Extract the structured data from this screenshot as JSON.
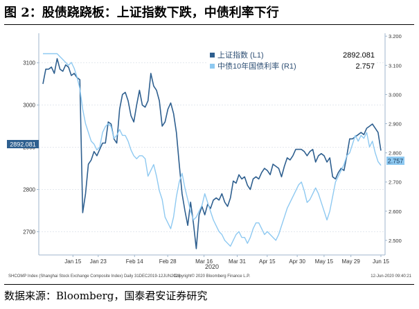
{
  "figure": {
    "title": "图 2：股债跷跷板：上证指数下跌，中债利率下行",
    "source": "数据来源：Bloomberg，国泰君安证券研究"
  },
  "chart_data": {
    "type": "line",
    "x_labels": [
      "Jan 15",
      "Jan 23",
      "Feb 14",
      "Feb 28",
      "Mar 16",
      "Mar 31",
      "Apr 15",
      "Apr 30",
      "May 15",
      "May 29",
      "Jun 15"
    ],
    "x_year_label": "2020",
    "left_axis": {
      "ticks": [
        2700,
        2800,
        2900,
        3000,
        3100
      ],
      "range": [
        2645,
        3170
      ]
    },
    "right_axis": {
      "ticks": [
        "2.500",
        "2.600",
        "2.700",
        "2.800",
        "2.900",
        "3.000",
        "3.100",
        "3.200"
      ],
      "range": [
        2.45,
        3.21
      ]
    },
    "legend": {
      "position": "top-center",
      "entries": [
        {
          "label": "上证指数 (L1)",
          "value": "2892.081"
        },
        {
          "label": "中债10年国债利率 (R1)",
          "value": "2.757"
        }
      ]
    },
    "last_value_tags": {
      "left": "2892.081",
      "right": "2.757"
    },
    "series": [
      {
        "name": "上证指数 (L1)",
        "axis": "left",
        "color": "#2e5f8f",
        "values": [
          3050,
          3085,
          3085,
          3090,
          3075,
          3110,
          3085,
          3080,
          3095,
          3090,
          3070,
          3075,
          3065,
          3060,
          2745,
          2790,
          2860,
          2870,
          2890,
          2880,
          2895,
          2910,
          2910,
          2960,
          2955,
          2920,
          2910,
          2990,
          3025,
          3030,
          3010,
          2975,
          2960,
          3000,
          3035,
          3000,
          2995,
          3010,
          3075,
          3045,
          3035,
          3010,
          2950,
          2960,
          2990,
          3005,
          2980,
          2935,
          2860,
          2790,
          2750,
          2715,
          2770,
          2720,
          2660,
          2740,
          2760,
          2740,
          2765,
          2755,
          2775,
          2780,
          2775,
          2790,
          2770,
          2760,
          2780,
          2820,
          2815,
          2835,
          2825,
          2830,
          2810,
          2800,
          2825,
          2830,
          2825,
          2840,
          2850,
          2845,
          2835,
          2860,
          2855,
          2850,
          2830,
          2855,
          2875,
          2870,
          2880,
          2895,
          2895,
          2895,
          2890,
          2880,
          2890,
          2895,
          2865,
          2880,
          2885,
          2880,
          2865,
          2875,
          2830,
          2825,
          2840,
          2850,
          2845,
          2880,
          2920,
          2920,
          2925,
          2930,
          2935,
          2930,
          2945,
          2950,
          2955,
          2945,
          2935,
          2892
        ]
      },
      {
        "name": "中债10年国债利率 (R1)",
        "axis": "right",
        "color": "#8ec9f1",
        "values": [
          3.14,
          3.14,
          3.14,
          3.14,
          3.14,
          3.14,
          3.13,
          3.12,
          3.11,
          3.1,
          3.11,
          3.09,
          3.06,
          3.02,
          2.95,
          2.9,
          2.87,
          2.84,
          2.83,
          2.81,
          2.82,
          2.87,
          2.89,
          2.9,
          2.89,
          2.85,
          2.86,
          2.88,
          2.86,
          2.86,
          2.84,
          2.81,
          2.79,
          2.78,
          2.79,
          2.79,
          2.78,
          2.72,
          2.74,
          2.76,
          2.72,
          2.67,
          2.64,
          2.58,
          2.56,
          2.54,
          2.58,
          2.65,
          2.7,
          2.73,
          2.68,
          2.64,
          2.6,
          2.57,
          2.58,
          2.6,
          2.62,
          2.66,
          2.63,
          2.6,
          2.57,
          2.55,
          2.53,
          2.52,
          2.5,
          2.49,
          2.48,
          2.5,
          2.52,
          2.53,
          2.51,
          2.51,
          2.49,
          2.51,
          2.54,
          2.56,
          2.56,
          2.54,
          2.52,
          2.53,
          2.52,
          2.51,
          2.5,
          2.52,
          2.55,
          2.58,
          2.61,
          2.63,
          2.65,
          2.67,
          2.69,
          2.7,
          2.67,
          2.63,
          2.64,
          2.66,
          2.68,
          2.66,
          2.63,
          2.6,
          2.57,
          2.6,
          2.65,
          2.7,
          2.72,
          2.74,
          2.76,
          2.79,
          2.8,
          2.83,
          2.86,
          2.84,
          2.86,
          2.85,
          2.87,
          2.82,
          2.84,
          2.8,
          2.77,
          2.757
        ]
      }
    ]
  },
  "footer": {
    "left": "SHCOMP Index (Shanghai Stock Exchange Composite Index)  Daily 31DEC2019-12JUN2020",
    "center": "Copyright© 2020 Bloomberg Finance L.P.",
    "right": "12-Jun-2020 09:40:21"
  }
}
